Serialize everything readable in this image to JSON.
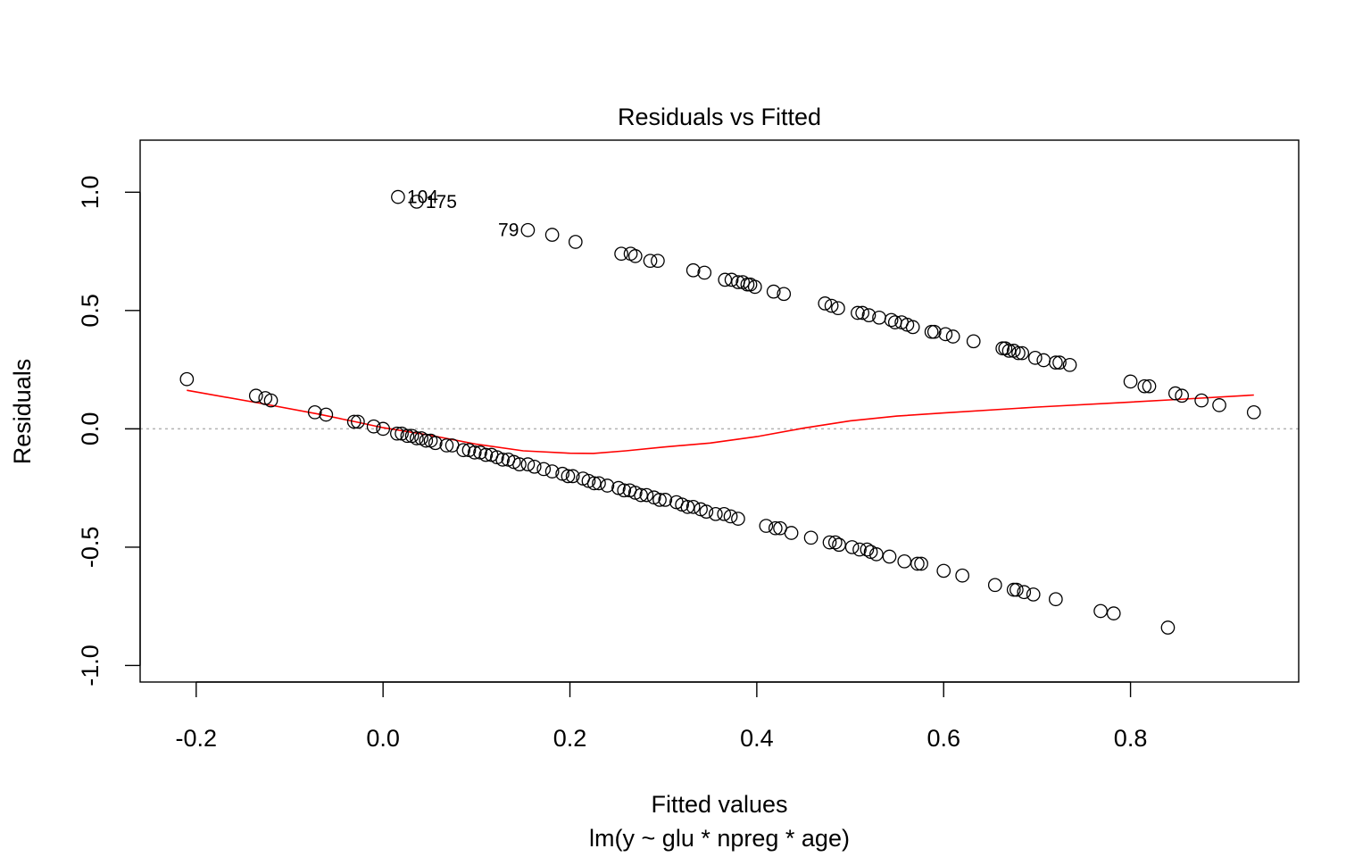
{
  "chart_data": {
    "type": "scatter",
    "title": "Residuals vs Fitted",
    "xlabel": "Fitted values",
    "subtitle": "lm(y ~ glu * npreg * age)",
    "ylabel": "Residuals",
    "xlim": [
      -0.26,
      0.98
    ],
    "ylim": [
      -1.07,
      1.22
    ],
    "xticks": [
      -0.2,
      0.0,
      0.2,
      0.4,
      0.6,
      0.8
    ],
    "xtick_labels": [
      "-0.2",
      "0.0",
      "0.2",
      "0.4",
      "0.6",
      "0.8"
    ],
    "yticks": [
      -1.0,
      -0.5,
      0.0,
      0.5,
      1.0
    ],
    "ytick_labels": [
      "-1.0",
      "-0.5",
      "0.0",
      "0.5",
      "1.0"
    ],
    "reference_line": {
      "y": 0,
      "style": "dotted",
      "color": "#b3b3b3"
    },
    "points": [
      [
        -0.21,
        0.21
      ],
      [
        -0.136,
        0.14
      ],
      [
        -0.126,
        0.13
      ],
      [
        -0.12,
        0.12
      ],
      [
        -0.073,
        0.07
      ],
      [
        -0.061,
        0.06
      ],
      [
        -0.031,
        0.03
      ],
      [
        -0.027,
        0.03
      ],
      [
        -0.01,
        0.01
      ],
      [
        0.0,
        0.0
      ],
      [
        0.015,
        -0.02
      ],
      [
        0.02,
        -0.02
      ],
      [
        0.026,
        -0.03
      ],
      [
        0.031,
        -0.03
      ],
      [
        0.036,
        -0.04
      ],
      [
        0.041,
        -0.04
      ],
      [
        0.046,
        -0.05
      ],
      [
        0.051,
        -0.05
      ],
      [
        0.056,
        -0.06
      ],
      [
        0.068,
        -0.07
      ],
      [
        0.074,
        -0.07
      ],
      [
        0.086,
        -0.09
      ],
      [
        0.092,
        -0.09
      ],
      [
        0.098,
        -0.1
      ],
      [
        0.104,
        -0.1
      ],
      [
        0.11,
        -0.11
      ],
      [
        0.116,
        -0.11
      ],
      [
        0.122,
        -0.12
      ],
      [
        0.128,
        -0.13
      ],
      [
        0.134,
        -0.13
      ],
      [
        0.14,
        -0.14
      ],
      [
        0.146,
        -0.15
      ],
      [
        0.155,
        -0.15
      ],
      [
        0.162,
        -0.16
      ],
      [
        0.172,
        -0.17
      ],
      [
        0.181,
        -0.18
      ],
      [
        0.192,
        -0.19
      ],
      [
        0.198,
        -0.2
      ],
      [
        0.203,
        -0.2
      ],
      [
        0.214,
        -0.21
      ],
      [
        0.22,
        -0.22
      ],
      [
        0.226,
        -0.23
      ],
      [
        0.231,
        -0.23
      ],
      [
        0.24,
        -0.24
      ],
      [
        0.252,
        -0.25
      ],
      [
        0.258,
        -0.26
      ],
      [
        0.264,
        -0.26
      ],
      [
        0.27,
        -0.27
      ],
      [
        0.276,
        -0.28
      ],
      [
        0.282,
        -0.28
      ],
      [
        0.29,
        -0.29
      ],
      [
        0.296,
        -0.3
      ],
      [
        0.302,
        -0.3
      ],
      [
        0.314,
        -0.31
      ],
      [
        0.32,
        -0.32
      ],
      [
        0.326,
        -0.33
      ],
      [
        0.332,
        -0.33
      ],
      [
        0.34,
        -0.34
      ],
      [
        0.346,
        -0.35
      ],
      [
        0.356,
        -0.36
      ],
      [
        0.365,
        -0.36
      ],
      [
        0.372,
        -0.37
      ],
      [
        0.38,
        -0.38
      ],
      [
        0.41,
        -0.41
      ],
      [
        0.42,
        -0.42
      ],
      [
        0.425,
        -0.42
      ],
      [
        0.437,
        -0.44
      ],
      [
        0.458,
        -0.46
      ],
      [
        0.478,
        -0.48
      ],
      [
        0.484,
        -0.48
      ],
      [
        0.488,
        -0.49
      ],
      [
        0.502,
        -0.5
      ],
      [
        0.51,
        -0.51
      ],
      [
        0.518,
        -0.51
      ],
      [
        0.522,
        -0.52
      ],
      [
        0.528,
        -0.53
      ],
      [
        0.542,
        -0.54
      ],
      [
        0.558,
        -0.56
      ],
      [
        0.572,
        -0.57
      ],
      [
        0.576,
        -0.57
      ],
      [
        0.6,
        -0.6
      ],
      [
        0.62,
        -0.62
      ],
      [
        0.655,
        -0.66
      ],
      [
        0.675,
        -0.68
      ],
      [
        0.678,
        -0.68
      ],
      [
        0.686,
        -0.69
      ],
      [
        0.696,
        -0.7
      ],
      [
        0.72,
        -0.72
      ],
      [
        0.768,
        -0.77
      ],
      [
        0.782,
        -0.78
      ],
      [
        0.84,
        -0.84
      ],
      [
        0.016,
        0.98
      ],
      [
        0.036,
        0.96
      ],
      [
        0.155,
        0.84
      ],
      [
        0.181,
        0.82
      ],
      [
        0.206,
        0.79
      ],
      [
        0.255,
        0.74
      ],
      [
        0.265,
        0.74
      ],
      [
        0.27,
        0.73
      ],
      [
        0.286,
        0.71
      ],
      [
        0.294,
        0.71
      ],
      [
        0.332,
        0.67
      ],
      [
        0.344,
        0.66
      ],
      [
        0.366,
        0.63
      ],
      [
        0.373,
        0.63
      ],
      [
        0.38,
        0.62
      ],
      [
        0.385,
        0.62
      ],
      [
        0.39,
        0.61
      ],
      [
        0.393,
        0.61
      ],
      [
        0.398,
        0.6
      ],
      [
        0.418,
        0.58
      ],
      [
        0.429,
        0.57
      ],
      [
        0.473,
        0.53
      ],
      [
        0.48,
        0.52
      ],
      [
        0.487,
        0.51
      ],
      [
        0.508,
        0.49
      ],
      [
        0.513,
        0.49
      ],
      [
        0.52,
        0.48
      ],
      [
        0.531,
        0.47
      ],
      [
        0.544,
        0.46
      ],
      [
        0.548,
        0.45
      ],
      [
        0.555,
        0.45
      ],
      [
        0.561,
        0.44
      ],
      [
        0.567,
        0.43
      ],
      [
        0.587,
        0.41
      ],
      [
        0.59,
        0.41
      ],
      [
        0.602,
        0.4
      ],
      [
        0.61,
        0.39
      ],
      [
        0.632,
        0.37
      ],
      [
        0.663,
        0.34
      ],
      [
        0.666,
        0.34
      ],
      [
        0.67,
        0.33
      ],
      [
        0.675,
        0.33
      ],
      [
        0.68,
        0.32
      ],
      [
        0.684,
        0.32
      ],
      [
        0.698,
        0.3
      ],
      [
        0.707,
        0.29
      ],
      [
        0.72,
        0.28
      ],
      [
        0.724,
        0.28
      ],
      [
        0.735,
        0.27
      ],
      [
        0.8,
        0.2
      ],
      [
        0.815,
        0.18
      ],
      [
        0.82,
        0.18
      ],
      [
        0.848,
        0.15
      ],
      [
        0.855,
        0.14
      ],
      [
        0.876,
        0.12
      ],
      [
        0.895,
        0.1
      ],
      [
        0.932,
        0.07
      ]
    ],
    "point_labels": [
      {
        "text": "104",
        "x": 0.016,
        "y": 0.98,
        "side": "right"
      },
      {
        "text": "175",
        "x": 0.036,
        "y": 0.96,
        "side": "right"
      },
      {
        "text": "79",
        "x": 0.155,
        "y": 0.84,
        "side": "left"
      }
    ],
    "smooth_line": {
      "color": "#ff0000",
      "points": [
        [
          -0.21,
          0.163
        ],
        [
          -0.13,
          0.107
        ],
        [
          -0.07,
          0.063
        ],
        [
          -0.03,
          0.03
        ],
        [
          0.0,
          0.005
        ],
        [
          0.05,
          -0.027
        ],
        [
          0.1,
          -0.065
        ],
        [
          0.15,
          -0.093
        ],
        [
          0.2,
          -0.103
        ],
        [
          0.225,
          -0.104
        ],
        [
          0.26,
          -0.093
        ],
        [
          0.3,
          -0.077
        ],
        [
          0.35,
          -0.06
        ],
        [
          0.4,
          -0.033
        ],
        [
          0.45,
          0.003
        ],
        [
          0.5,
          0.034
        ],
        [
          0.55,
          0.054
        ],
        [
          0.6,
          0.067
        ],
        [
          0.7,
          0.092
        ],
        [
          0.8,
          0.113
        ],
        [
          0.85,
          0.124
        ],
        [
          0.932,
          0.143
        ]
      ]
    }
  }
}
